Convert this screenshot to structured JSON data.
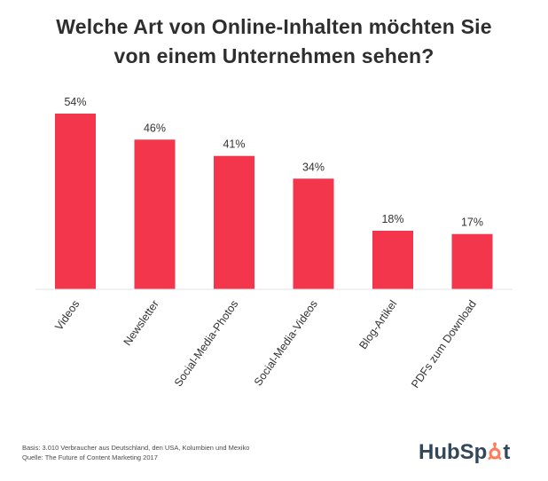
{
  "chart_data": {
    "type": "bar",
    "title": "Welche Art von Online-Inhalten möchten Sie von einem Unternehmen sehen?",
    "title_lines": [
      "Welche Art von Online-Inhalten möchten Sie",
      "von einem Unternehmen sehen?"
    ],
    "categories": [
      "Videos",
      "Newsletter",
      "Social-Media-Photos",
      "Social-Media-Videos",
      "Blog-Artikel",
      "PDFs zum Download"
    ],
    "values": [
      54,
      46,
      41,
      34,
      18,
      17
    ],
    "value_labels": [
      "54%",
      "46%",
      "41%",
      "34%",
      "18%",
      "17%"
    ],
    "unit": "%",
    "xlabel": "",
    "ylabel": "",
    "ylim": [
      0,
      54
    ],
    "grid": false,
    "legend": "none",
    "bar_color": "#f4364c"
  },
  "footnotes": {
    "basis": "Basis: 3.010 Verbraucher aus Deutschland, den USA, Kolumbien und Mexiko",
    "source": "Quelle: The Future of Content Marketing 2017"
  },
  "logo": {
    "text_before": "HubSp",
    "text_after": "t",
    "icon": "sprocket-icon"
  },
  "colors": {
    "bar": "#f4364c",
    "title": "#2e2e2e",
    "logo_text": "#33475b",
    "logo_accent": "#ff7a59"
  }
}
